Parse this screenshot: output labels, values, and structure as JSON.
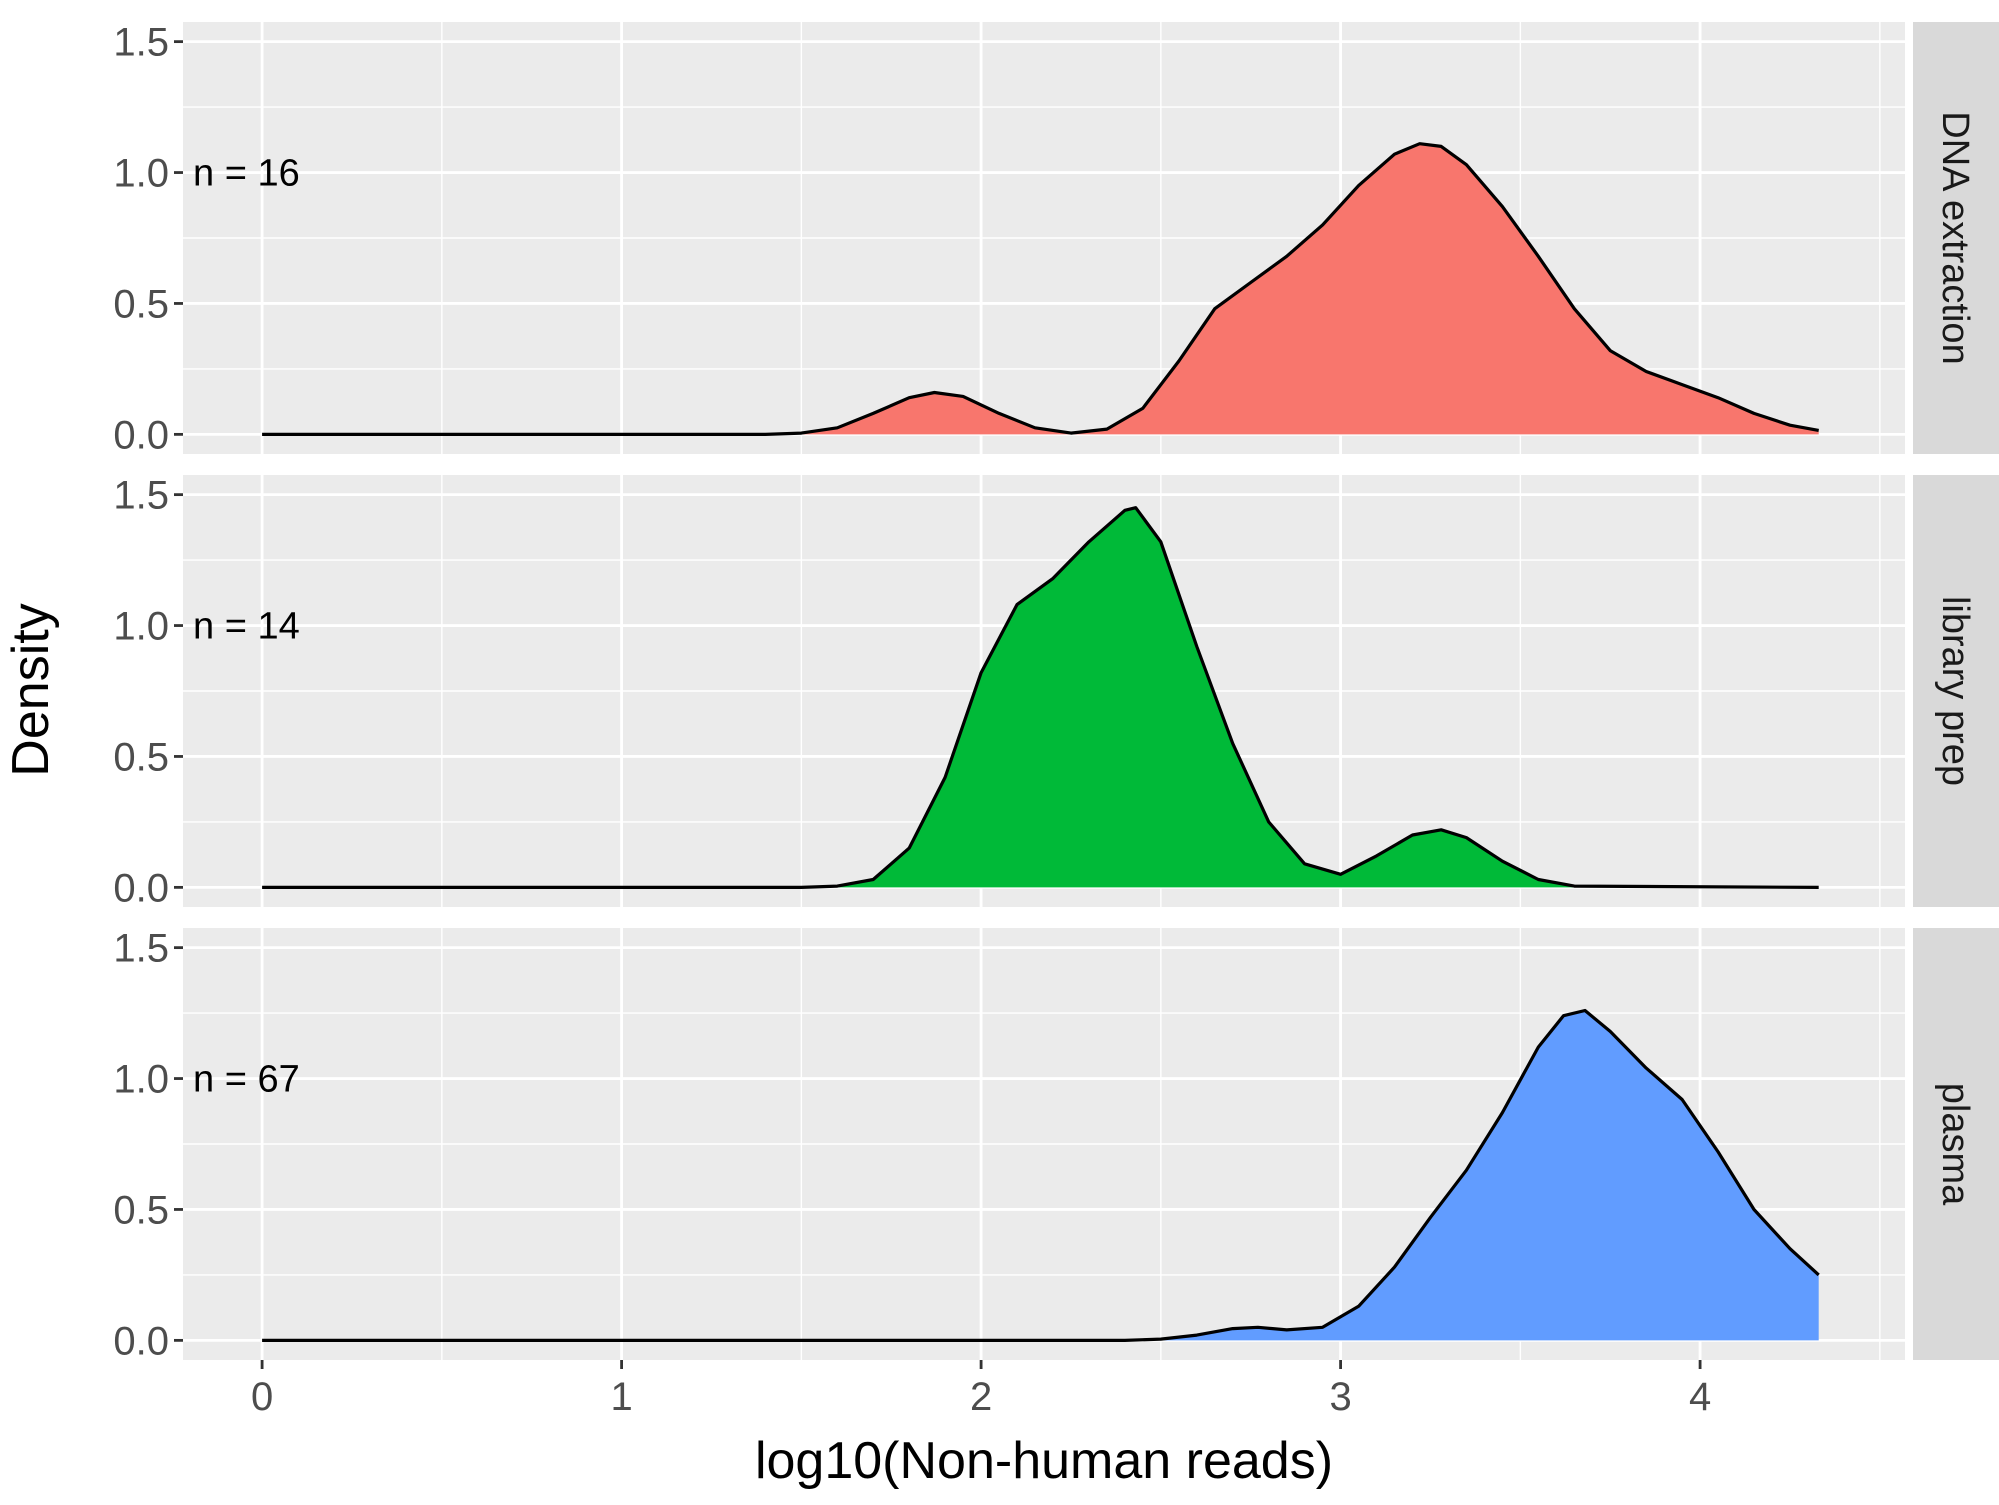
{
  "chart_data": {
    "type": "area",
    "xlabel": "log10(Non-human reads)",
    "ylabel": "Density",
    "xlim": [
      -0.22,
      4.57
    ],
    "ylim": [
      -0.075,
      1.575
    ],
    "x_ticks": [
      0,
      1,
      2,
      3,
      4
    ],
    "y_ticks": [
      0.0,
      0.5,
      1.0,
      1.5
    ],
    "x_tick_labels": [
      "0",
      "1",
      "2",
      "3",
      "4"
    ],
    "y_tick_labels": [
      "0.0",
      "0.5",
      "1.0",
      "1.5"
    ],
    "grid": true,
    "legend": "none",
    "panels": [
      {
        "name": "DNA extraction",
        "annotation": "n = 16",
        "color": "#F8766D",
        "x": [
          0.0,
          1.4,
          1.5,
          1.6,
          1.7,
          1.8,
          1.87,
          1.95,
          2.05,
          2.15,
          2.25,
          2.35,
          2.45,
          2.55,
          2.65,
          2.75,
          2.85,
          2.95,
          3.05,
          3.15,
          3.22,
          3.28,
          3.35,
          3.45,
          3.55,
          3.65,
          3.75,
          3.85,
          3.95,
          4.05,
          4.15,
          4.25,
          4.33
        ],
        "values": [
          0.0,
          0.0,
          0.005,
          0.025,
          0.08,
          0.14,
          0.16,
          0.145,
          0.08,
          0.025,
          0.005,
          0.02,
          0.1,
          0.28,
          0.48,
          0.58,
          0.68,
          0.8,
          0.95,
          1.07,
          1.11,
          1.1,
          1.03,
          0.87,
          0.68,
          0.48,
          0.32,
          0.24,
          0.19,
          0.14,
          0.08,
          0.035,
          0.015
        ]
      },
      {
        "name": "library prep",
        "annotation": "n = 14",
        "color": "#00BA38",
        "x": [
          0.0,
          1.5,
          1.6,
          1.7,
          1.8,
          1.9,
          2.0,
          2.1,
          2.2,
          2.3,
          2.4,
          2.43,
          2.5,
          2.6,
          2.7,
          2.8,
          2.9,
          3.0,
          3.1,
          3.2,
          3.28,
          3.35,
          3.45,
          3.55,
          3.65,
          4.33
        ],
        "values": [
          0.0,
          0.0,
          0.005,
          0.03,
          0.15,
          0.42,
          0.82,
          1.08,
          1.18,
          1.32,
          1.44,
          1.45,
          1.32,
          0.92,
          0.55,
          0.25,
          0.09,
          0.05,
          0.12,
          0.2,
          0.22,
          0.19,
          0.1,
          0.03,
          0.005,
          0.0
        ]
      },
      {
        "name": "plasma",
        "annotation": "n = 67",
        "color": "#619CFF",
        "x": [
          0.0,
          2.4,
          2.5,
          2.6,
          2.7,
          2.77,
          2.85,
          2.95,
          3.05,
          3.15,
          3.25,
          3.35,
          3.45,
          3.55,
          3.62,
          3.68,
          3.75,
          3.85,
          3.95,
          4.05,
          4.15,
          4.25,
          4.33
        ],
        "values": [
          0.0,
          0.0,
          0.005,
          0.02,
          0.045,
          0.05,
          0.04,
          0.05,
          0.13,
          0.28,
          0.47,
          0.65,
          0.87,
          1.12,
          1.24,
          1.26,
          1.18,
          1.04,
          0.92,
          0.72,
          0.5,
          0.35,
          0.25
        ]
      }
    ]
  }
}
